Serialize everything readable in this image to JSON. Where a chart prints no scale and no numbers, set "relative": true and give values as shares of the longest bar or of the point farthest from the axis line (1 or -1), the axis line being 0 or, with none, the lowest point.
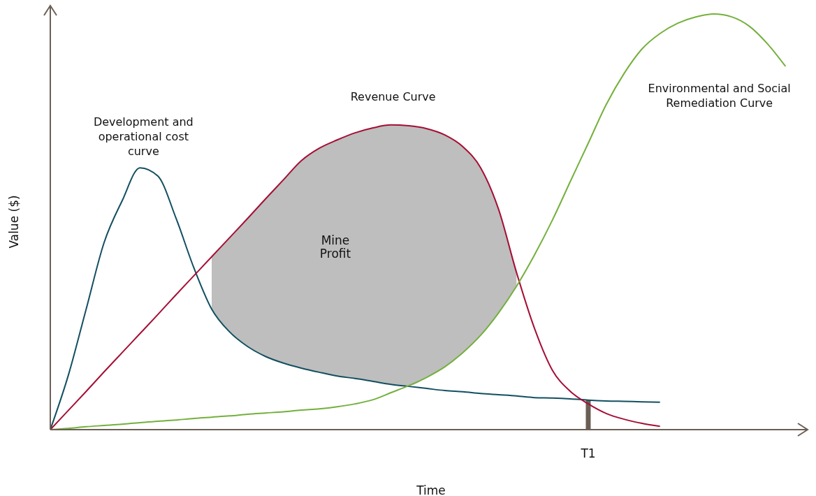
{
  "chart_data": {
    "type": "line",
    "relative": true,
    "xlabel": "Time",
    "ylabel": "Value ($)",
    "legend": false,
    "grid": false,
    "marker": "none",
    "line_style": "solid",
    "categories": [
      null,
      null,
      null,
      null,
      null,
      null,
      null,
      null,
      null,
      null,
      null,
      null,
      null,
      null,
      null,
      null,
      null,
      null,
      null,
      null,
      null,
      null,
      null,
      null,
      null,
      null,
      null,
      null,
      null,
      null,
      null,
      null,
      null,
      null,
      null,
      null,
      null,
      null,
      null,
      null,
      null,
      null
    ],
    "annotations": [
      "Mine Profit",
      "T1"
    ],
    "series": [
      {
        "name": "Development and operational cost curve",
        "color": "#124f60",
        "values": [
          0,
          0.13,
          0.29,
          0.45,
          0.55,
          0.63,
          0.61,
          0.51,
          0.39,
          0.29,
          0.235,
          0.2,
          0.176,
          0.16,
          0.148,
          0.138,
          0.129,
          0.123,
          0.116,
          0.109,
          0.104,
          0.099,
          0.094,
          0.091,
          0.087,
          0.084,
          0.081,
          0.077,
          0.076,
          0.074,
          0.071,
          0.069,
          0.068,
          0.067,
          0.066,
          null,
          null,
          null,
          null,
          null,
          null,
          null
        ]
      },
      {
        "name": "Revenue Curve",
        "color": "#a50e35",
        "values": [
          0,
          0.046,
          0.092,
          0.139,
          0.185,
          0.231,
          0.277,
          0.324,
          0.37,
          0.416,
          0.462,
          0.508,
          0.555,
          0.601,
          0.647,
          0.677,
          0.697,
          0.714,
          0.726,
          0.733,
          0.731,
          0.724,
          0.709,
          0.681,
          0.63,
          0.53,
          0.378,
          0.244,
          0.143,
          0.092,
          0.062,
          0.039,
          0.025,
          0.015,
          0.008,
          null,
          null,
          null,
          null,
          null,
          null,
          null
        ],
        "lower": [
          null,
          null,
          null,
          null,
          null,
          null,
          null,
          null,
          null,
          0.29,
          0.235,
          0.2,
          0.176,
          0.16,
          0.148,
          0.138,
          0.129,
          0.123,
          0.116,
          0.109,
          0.106,
          0.126,
          0.151,
          0.185,
          0.227,
          0.281,
          0.345,
          null,
          null,
          null,
          null,
          null,
          null,
          null,
          null,
          null,
          null,
          null,
          null,
          null,
          null,
          null
        ],
        "upper": [
          null,
          null,
          null,
          null,
          null,
          null,
          null,
          null,
          null,
          0.416,
          0.462,
          0.508,
          0.555,
          0.601,
          0.647,
          0.677,
          0.697,
          0.714,
          0.726,
          0.733,
          0.731,
          0.724,
          0.709,
          0.681,
          0.63,
          0.53,
          0.378,
          null,
          null,
          null,
          null,
          null,
          null,
          null,
          null,
          null,
          null,
          null,
          null,
          null,
          null,
          null
        ]
      },
      {
        "name": "Environmental and Social Remediation Curve",
        "color": "#74b03c",
        "values": [
          0,
          0.003,
          0.007,
          0.01,
          0.013,
          0.017,
          0.02,
          0.023,
          0.027,
          0.03,
          0.033,
          0.037,
          0.04,
          0.043,
          0.047,
          0.05,
          0.055,
          0.062,
          0.072,
          0.089,
          0.106,
          0.126,
          0.151,
          0.185,
          0.227,
          0.281,
          0.345,
          0.42,
          0.504,
          0.597,
          0.689,
          0.782,
          0.857,
          0.916,
          0.953,
          0.978,
          0.993,
          1,
          0.993,
          0.97,
          0.928,
          0.874
        ]
      }
    ]
  }
}
